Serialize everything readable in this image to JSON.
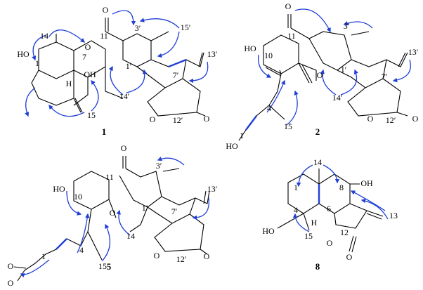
{
  "structures": [
    {
      "label": "1",
      "atoms": [
        "O",
        "15′",
        "3′",
        "11",
        "14",
        "O",
        "7",
        "HO",
        "1",
        "13′",
        "1′",
        "OH",
        "H",
        "7′",
        "14′",
        "15",
        "O",
        "12′",
        "O"
      ]
    },
    {
      "label": "2",
      "atoms": [
        "O",
        "3′",
        "11",
        "HO",
        "10",
        "13′",
        "1′",
        "O",
        "7′",
        "4",
        "14′",
        "15",
        "O",
        "12′",
        "O",
        "1",
        "HO"
      ]
    },
    {
      "label": "5",
      "atoms": [
        "O",
        "3′",
        "11",
        "13′",
        "HO",
        "10",
        "1′",
        "7′",
        "O",
        "4",
        "15",
        "14",
        "O",
        "12′",
        "O",
        "1",
        "O",
        "O"
      ]
    },
    {
      "label": "8",
      "atoms": [
        "14",
        "1",
        "8",
        "OH",
        "4",
        "6",
        "H",
        "13",
        "HO",
        "12",
        "15",
        "O",
        "O"
      ]
    }
  ]
}
